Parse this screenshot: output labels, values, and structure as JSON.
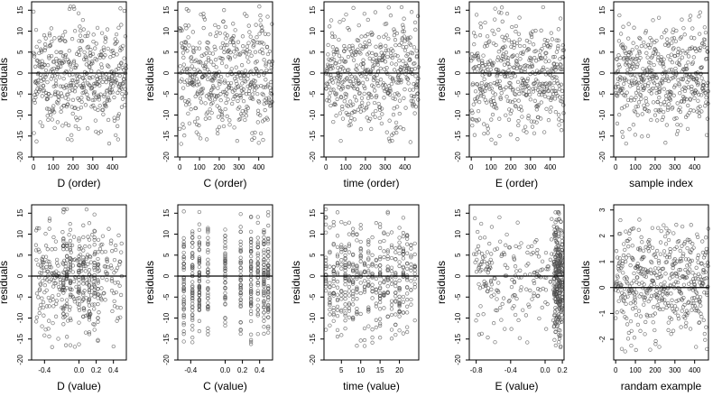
{
  "chart_data": [
    {
      "type": "scatter",
      "xlabel": "D (order)",
      "ylabel": "residuals",
      "xlim": [
        -10,
        470
      ],
      "ylim": [
        -20,
        17
      ],
      "x_ticks": [
        0,
        100,
        200,
        300,
        400
      ],
      "y_ticks": [
        -20,
        -15,
        -10,
        -5,
        0,
        5,
        10,
        15
      ],
      "hline": 0,
      "x_generator": "order",
      "n_points": 470,
      "y_range": [
        -17,
        16
      ],
      "grid": false
    },
    {
      "type": "scatter",
      "xlabel": "C (order)",
      "ylabel": "residuals",
      "xlim": [
        -10,
        470
      ],
      "ylim": [
        -20,
        17
      ],
      "x_ticks": [
        0,
        100,
        200,
        300,
        400
      ],
      "y_ticks": [
        -20,
        -15,
        -10,
        -5,
        0,
        5,
        10,
        15
      ],
      "hline": 0,
      "x_generator": "order",
      "n_points": 470,
      "y_range": [
        -17,
        16
      ],
      "grid": false
    },
    {
      "type": "scatter",
      "xlabel": "time (order)",
      "ylabel": "residuals",
      "xlim": [
        -10,
        470
      ],
      "ylim": [
        -20,
        17
      ],
      "x_ticks": [
        0,
        100,
        200,
        300,
        400
      ],
      "y_ticks": [
        -20,
        -15,
        -10,
        -5,
        0,
        5,
        10,
        15
      ],
      "hline": 0,
      "x_generator": "order",
      "n_points": 470,
      "y_range": [
        -17,
        16
      ],
      "grid": false
    },
    {
      "type": "scatter",
      "xlabel": "E (order)",
      "ylabel": "residuals",
      "xlim": [
        -10,
        470
      ],
      "ylim": [
        -20,
        17
      ],
      "x_ticks": [
        0,
        100,
        200,
        300,
        400
      ],
      "y_ticks": [
        -20,
        -15,
        -10,
        -5,
        0,
        5,
        10,
        15
      ],
      "hline": 0,
      "x_generator": "order",
      "n_points": 470,
      "y_range": [
        -17,
        16
      ],
      "grid": false
    },
    {
      "type": "scatter",
      "xlabel": "sample index",
      "ylabel": "residuals",
      "xlim": [
        -10,
        470
      ],
      "ylim": [
        -20,
        17
      ],
      "x_ticks": [
        0,
        100,
        200,
        300,
        400
      ],
      "y_ticks": [
        -20,
        -15,
        -10,
        -5,
        0,
        5,
        10,
        15
      ],
      "hline": 0,
      "x_generator": "order",
      "n_points": 470,
      "y_range": [
        -17,
        16
      ],
      "grid": false
    },
    {
      "type": "scatter",
      "xlabel": "D (value)",
      "ylabel": "residuals",
      "xlim": [
        -0.55,
        0.55
      ],
      "ylim": [
        -20,
        17
      ],
      "x_ticks": [
        -0.4,
        0.0,
        0.2,
        0.4
      ],
      "x_tick_labels": [
        "-0.4",
        "0.0",
        "0.2",
        "0.4"
      ],
      "y_ticks": [
        -20,
        -15,
        -10,
        -5,
        0,
        5,
        10,
        15
      ],
      "hline": 0,
      "x_generator": "uniform",
      "x_range": [
        -0.5,
        0.5
      ],
      "x_columns": [
        -0.18,
        -0.14,
        -0.1,
        0.0,
        0.05,
        0.12,
        0.18,
        0.22
      ],
      "n_points": 470,
      "y_range": [
        -17,
        16
      ],
      "grid": false
    },
    {
      "type": "scatter",
      "xlabel": "C (value)",
      "ylabel": "residuals",
      "xlim": [
        -0.55,
        0.55
      ],
      "ylim": [
        -20,
        17
      ],
      "x_ticks": [
        -0.4,
        0.0,
        0.2,
        0.4
      ],
      "x_tick_labels": [
        "-0.4",
        "0.0",
        "0.2",
        "0.4"
      ],
      "y_ticks": [
        -20,
        -15,
        -10,
        -5,
        0,
        5,
        10,
        15
      ],
      "hline": 0,
      "x_generator": "columns",
      "x_columns": [
        -0.48,
        -0.38,
        -0.3,
        -0.2,
        0.0,
        0.18,
        0.3,
        0.38,
        0.45,
        0.5
      ],
      "n_points": 470,
      "y_range": [
        -17,
        16
      ],
      "grid": false
    },
    {
      "type": "scatter",
      "xlabel": "time (value)",
      "ylabel": "residuals",
      "xlim": [
        0.5,
        25
      ],
      "ylim": [
        -20,
        17
      ],
      "x_ticks": [
        5,
        10,
        15,
        20
      ],
      "x_tick_labels": [
        "5",
        "10",
        "15",
        "20"
      ],
      "y_ticks": [
        -20,
        -15,
        -10,
        -5,
        0,
        5,
        10,
        15
      ],
      "hline": 0,
      "x_generator": "columns",
      "x_columns": [
        1,
        2,
        3,
        4,
        5,
        6,
        7,
        8,
        9,
        10,
        11,
        12,
        13,
        14,
        15,
        16,
        17,
        18,
        19,
        20,
        21,
        22,
        23,
        24
      ],
      "n_points": 470,
      "y_range": [
        -17,
        16
      ],
      "grid": false
    },
    {
      "type": "scatter",
      "xlabel": "E (value)",
      "ylabel": "residuals",
      "xlim": [
        -0.88,
        0.22
      ],
      "ylim": [
        -20,
        17
      ],
      "x_ticks": [
        -0.8,
        -0.4,
        0.0,
        0.2
      ],
      "x_tick_labels": [
        "-0.8",
        "-0.4",
        "0.0",
        "0.2"
      ],
      "y_ticks": [
        -20,
        -15,
        -10,
        -5,
        0,
        5,
        10,
        15
      ],
      "hline": 0,
      "x_generator": "clustered",
      "x_range": [
        -0.85,
        0.2
      ],
      "x_dense_range": [
        0.1,
        0.2
      ],
      "dense_fraction": 0.6,
      "n_points": 470,
      "y_range": [
        -17,
        16
      ],
      "grid": false
    },
    {
      "type": "scatter",
      "xlabel": "randam example",
      "ylabel": "residuals",
      "xlim": [
        -10,
        470
      ],
      "ylim": [
        -2.8,
        3.2
      ],
      "x_ticks": [
        0,
        100,
        200,
        300,
        400
      ],
      "y_ticks": [
        -2,
        -1,
        0,
        1,
        2,
        3
      ],
      "hline": 0,
      "x_generator": "order",
      "n_points": 470,
      "y_range": [
        -2.5,
        2.8
      ],
      "grid": false
    }
  ]
}
